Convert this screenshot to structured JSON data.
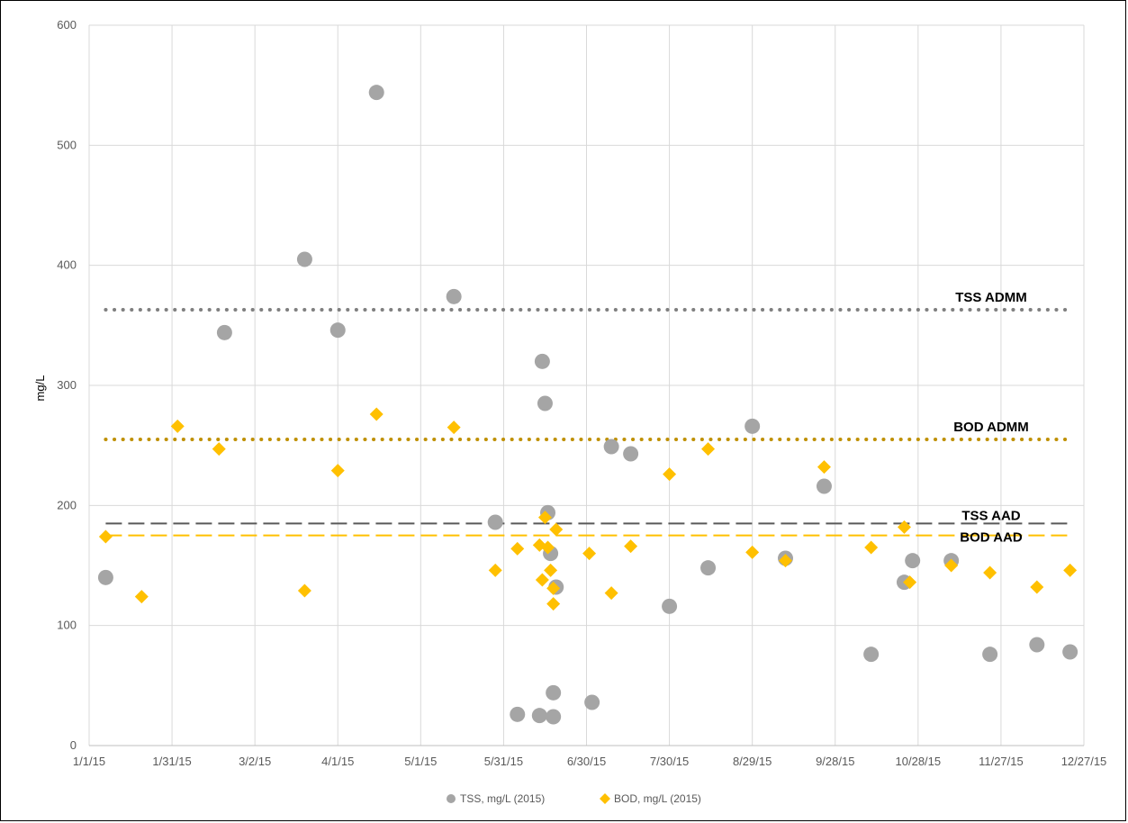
{
  "chart_data": {
    "type": "scatter",
    "ylabel": "mg/L",
    "ylim": [
      0,
      600
    ],
    "yticks": [
      0,
      100,
      200,
      300,
      400,
      500,
      600
    ],
    "xlim": [
      "2015-01-01",
      "2015-12-27"
    ],
    "xticks": [
      {
        "date": "2015-01-01",
        "label": "1/1/15"
      },
      {
        "date": "2015-01-31",
        "label": "1/31/15"
      },
      {
        "date": "2015-03-02",
        "label": "3/2/15"
      },
      {
        "date": "2015-04-01",
        "label": "4/1/15"
      },
      {
        "date": "2015-05-01",
        "label": "5/1/15"
      },
      {
        "date": "2015-05-31",
        "label": "5/31/15"
      },
      {
        "date": "2015-06-30",
        "label": "6/30/15"
      },
      {
        "date": "2015-07-30",
        "label": "7/30/15"
      },
      {
        "date": "2015-08-29",
        "label": "8/29/15"
      },
      {
        "date": "2015-09-28",
        "label": "9/28/15"
      },
      {
        "date": "2015-10-28",
        "label": "10/28/15"
      },
      {
        "date": "2015-11-27",
        "label": "11/27/15"
      },
      {
        "date": "2015-12-27",
        "label": "12/27/15"
      }
    ],
    "grid": true,
    "legend_position": "bottom",
    "series": [
      {
        "name": "TSS, mg/L (2015)",
        "marker": "circle",
        "color": "#A5A5A5",
        "points": [
          {
            "x": "2015-01-07",
            "y": 140
          },
          {
            "x": "2015-02-19",
            "y": 344
          },
          {
            "x": "2015-03-20",
            "y": 405
          },
          {
            "x": "2015-04-01",
            "y": 346
          },
          {
            "x": "2015-04-15",
            "y": 544
          },
          {
            "x": "2015-05-13",
            "y": 374
          },
          {
            "x": "2015-05-28",
            "y": 186
          },
          {
            "x": "2015-06-05",
            "y": 26
          },
          {
            "x": "2015-06-13",
            "y": 25
          },
          {
            "x": "2015-06-14",
            "y": 320
          },
          {
            "x": "2015-06-15",
            "y": 285
          },
          {
            "x": "2015-06-16",
            "y": 194
          },
          {
            "x": "2015-06-17",
            "y": 160
          },
          {
            "x": "2015-06-18",
            "y": 24
          },
          {
            "x": "2015-06-18",
            "y": 44
          },
          {
            "x": "2015-06-19",
            "y": 132
          },
          {
            "x": "2015-07-02",
            "y": 36
          },
          {
            "x": "2015-07-09",
            "y": 249
          },
          {
            "x": "2015-07-16",
            "y": 243
          },
          {
            "x": "2015-07-30",
            "y": 116
          },
          {
            "x": "2015-08-13",
            "y": 148
          },
          {
            "x": "2015-08-29",
            "y": 266
          },
          {
            "x": "2015-09-10",
            "y": 156
          },
          {
            "x": "2015-09-24",
            "y": 216
          },
          {
            "x": "2015-10-11",
            "y": 76
          },
          {
            "x": "2015-10-23",
            "y": 136
          },
          {
            "x": "2015-10-26",
            "y": 154
          },
          {
            "x": "2015-11-09",
            "y": 154
          },
          {
            "x": "2015-11-23",
            "y": 76
          },
          {
            "x": "2015-12-10",
            "y": 84
          },
          {
            "x": "2015-12-22",
            "y": 78
          }
        ]
      },
      {
        "name": "BOD, mg/L (2015)",
        "marker": "diamond",
        "color": "#FFC000",
        "points": [
          {
            "x": "2015-01-07",
            "y": 174
          },
          {
            "x": "2015-01-20",
            "y": 124
          },
          {
            "x": "2015-02-02",
            "y": 266
          },
          {
            "x": "2015-02-17",
            "y": 247
          },
          {
            "x": "2015-03-20",
            "y": 129
          },
          {
            "x": "2015-04-01",
            "y": 229
          },
          {
            "x": "2015-04-15",
            "y": 276
          },
          {
            "x": "2015-05-13",
            "y": 265
          },
          {
            "x": "2015-05-28",
            "y": 146
          },
          {
            "x": "2015-06-05",
            "y": 164
          },
          {
            "x": "2015-06-13",
            "y": 167
          },
          {
            "x": "2015-06-14",
            "y": 138
          },
          {
            "x": "2015-06-15",
            "y": 190
          },
          {
            "x": "2015-06-16",
            "y": 165
          },
          {
            "x": "2015-06-17",
            "y": 146
          },
          {
            "x": "2015-06-18",
            "y": 118
          },
          {
            "x": "2015-06-18",
            "y": 131
          },
          {
            "x": "2015-06-19",
            "y": 180
          },
          {
            "x": "2015-07-01",
            "y": 160
          },
          {
            "x": "2015-07-09",
            "y": 127
          },
          {
            "x": "2015-07-16",
            "y": 166
          },
          {
            "x": "2015-07-30",
            "y": 226
          },
          {
            "x": "2015-08-13",
            "y": 247
          },
          {
            "x": "2015-08-29",
            "y": 161
          },
          {
            "x": "2015-09-10",
            "y": 154
          },
          {
            "x": "2015-09-24",
            "y": 232
          },
          {
            "x": "2015-10-11",
            "y": 165
          },
          {
            "x": "2015-10-23",
            "y": 182
          },
          {
            "x": "2015-10-25",
            "y": 136
          },
          {
            "x": "2015-11-09",
            "y": 150
          },
          {
            "x": "2015-11-23",
            "y": 144
          },
          {
            "x": "2015-12-10",
            "y": 132
          },
          {
            "x": "2015-12-22",
            "y": 146
          }
        ]
      }
    ],
    "reference_lines": [
      {
        "label": "TSS ADMM",
        "y": 363,
        "style": "dotted",
        "color": "#7F7F7F"
      },
      {
        "label": "BOD ADMM",
        "y": 255,
        "style": "dotted",
        "color": "#BF9000"
      },
      {
        "label": "TSS AAD",
        "y": 185,
        "style": "dashed",
        "color": "#595959"
      },
      {
        "label": "BOD AAD",
        "y": 175,
        "style": "dashed",
        "color": "#FFC000"
      }
    ],
    "reference_range": [
      "2015-01-07",
      "2015-12-22"
    ]
  }
}
